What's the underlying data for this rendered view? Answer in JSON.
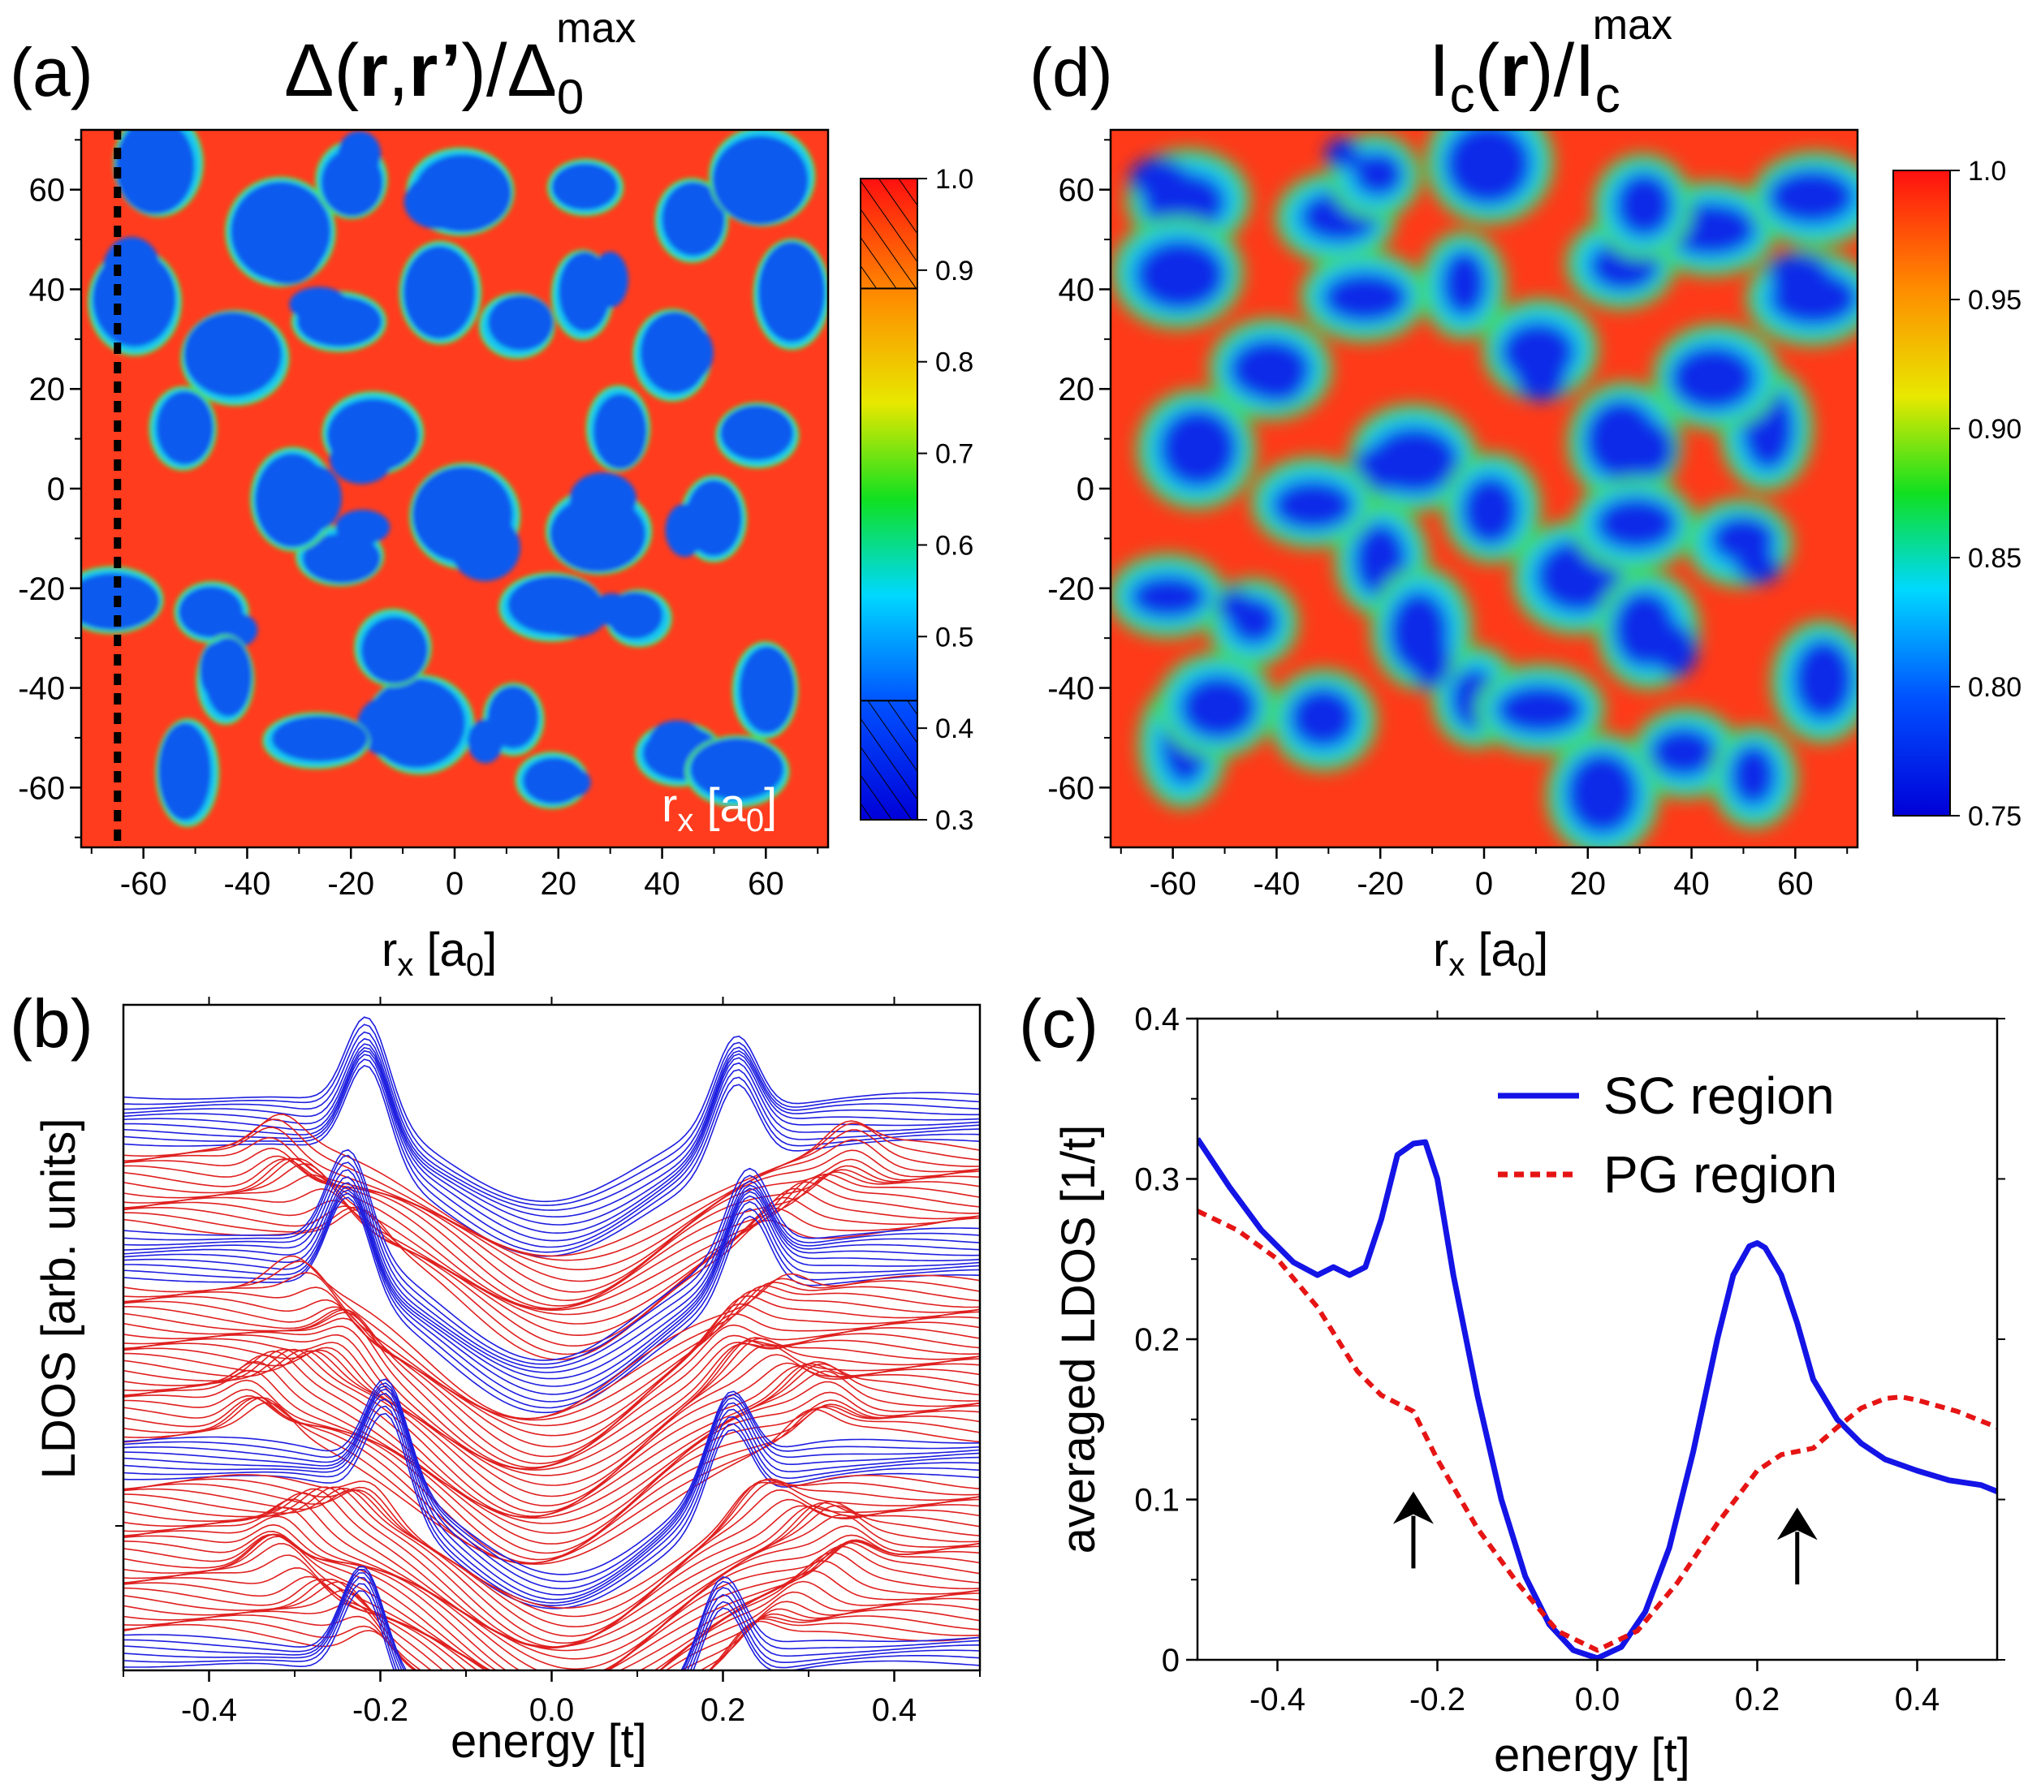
{
  "chart_data": [
    {
      "panel": "(a)",
      "type": "heatmap",
      "title": "Δ(r,r’)/Δ0max",
      "title_parts": {
        "main": "Δ(",
        "r1": "r",
        "comma": ",",
        "r2": "r’",
        "close": ")/Δ",
        "sub": "0",
        "sup": "max"
      },
      "xlabel": "rx [a0]",
      "xlabel_parts": {
        "r": "r",
        "sub": "x",
        "rest": " [a",
        "sub2": "0",
        "end": "]"
      },
      "ylabel": "",
      "inset_label_parts": {
        "r": "r",
        "sub": "x",
        "rest": " [a",
        "sub2": "0",
        "end": "]"
      },
      "xlim": [
        -72,
        72
      ],
      "ylim": [
        -72,
        72
      ],
      "xticks": [
        "-60",
        "-40",
        "-20",
        "0",
        "20",
        "40",
        "60"
      ],
      "yticks": [
        "60",
        "40",
        "20",
        "0",
        "-20",
        "-40",
        "-60"
      ],
      "xtick_values": [
        -60,
        -40,
        -20,
        0,
        20,
        40,
        60
      ],
      "ytick_values": [
        60,
        40,
        20,
        0,
        -20,
        -40,
        -60
      ],
      "dashed_line_x": -65,
      "colorbar": {
        "range": [
          0.3,
          1.0
        ],
        "ticks": [
          "1.0",
          "0.9",
          "0.8",
          "0.7",
          "0.6",
          "0.5",
          "0.4",
          "0.3"
        ],
        "tick_values": [
          1.0,
          0.9,
          0.8,
          0.7,
          0.6,
          0.5,
          0.4,
          0.3
        ],
        "hatched_ranges": [
          [
            0.88,
            1.0
          ],
          [
            0.3,
            0.43
          ]
        ]
      },
      "values_description_levels": {
        "high": 0.88,
        "low": 0.35
      }
    },
    {
      "panel": "(d)",
      "type": "heatmap",
      "title": "Ic(r)/Icmax",
      "title_parts": {
        "I1": "I",
        "c1": "c",
        "open": "(",
        "r": "r",
        "close": ")/I",
        "c2": "c",
        "sup": "max"
      },
      "xlabel": "rx [a0]",
      "xlabel_parts": {
        "r": "r",
        "sub": "x",
        "rest": " [a",
        "sub2": "0",
        "end": "]"
      },
      "xlim": [
        -72,
        72
      ],
      "ylim": [
        -72,
        72
      ],
      "xticks": [
        "-60",
        "-40",
        "-20",
        "0",
        "20",
        "40",
        "60"
      ],
      "yticks": [
        "60",
        "40",
        "20",
        "0",
        "-20",
        "-40",
        "-60"
      ],
      "xtick_values": [
        -60,
        -40,
        -20,
        0,
        20,
        40,
        60
      ],
      "ytick_values": [
        60,
        40,
        20,
        0,
        -20,
        -40,
        -60
      ],
      "colorbar": {
        "range": [
          0.75,
          1.0
        ],
        "ticks": [
          "1.0",
          "0.95",
          "0.90",
          "0.85",
          "0.80",
          "0.75"
        ],
        "tick_values": [
          1.0,
          0.95,
          0.9,
          0.85,
          0.8,
          0.75
        ]
      }
    },
    {
      "panel": "(b)",
      "type": "line",
      "title": "",
      "xlabel": "energy [t]",
      "ylabel": "LDOS [arb. units]",
      "xlim": [
        -0.5,
        0.5
      ],
      "xticks": [
        "-0.4",
        "-0.2",
        "0.0",
        "0.2",
        "0.4"
      ],
      "xtick_values": [
        -0.4,
        -0.2,
        0.0,
        0.2,
        0.4
      ],
      "series_colors": {
        "SC": "#1f1fe0",
        "PG": "#e02020"
      },
      "series_groups": [
        {
          "name": "SC top",
          "color_key": "SC",
          "count": 10
        },
        {
          "name": "PG 1",
          "color_key": "PG",
          "count": 16
        },
        {
          "name": "SC 2",
          "color_key": "SC",
          "count": 10
        },
        {
          "name": "PG 2",
          "color_key": "PG",
          "count": 30
        },
        {
          "name": "SC 3",
          "color_key": "SC",
          "count": 8
        },
        {
          "name": "PG 3",
          "color_key": "PG",
          "count": 30
        },
        {
          "name": "SC bottom",
          "color_key": "SC",
          "count": 6
        }
      ]
    },
    {
      "panel": "(c)",
      "type": "line",
      "title": "",
      "xlabel": "energy [t]",
      "ylabel": "averaged LDOS [1/t]",
      "xlim": [
        -0.5,
        0.5
      ],
      "ylim": [
        0,
        0.4
      ],
      "xticks": [
        "-0.4",
        "-0.2",
        "0.0",
        "0.2",
        "0.4"
      ],
      "xtick_values": [
        -0.4,
        -0.2,
        0.0,
        0.2,
        0.4
      ],
      "yticks": [
        "0.4",
        "0.3",
        "0.2",
        "0.1",
        "0"
      ],
      "ytick_values": [
        0.4,
        0.3,
        0.2,
        0.1,
        0
      ],
      "legend_position": "top-right",
      "series": [
        {
          "name": "SC region",
          "color": "#1414e6",
          "style": "solid",
          "x": [
            -0.5,
            -0.46,
            -0.42,
            -0.38,
            -0.35,
            -0.33,
            -0.31,
            -0.29,
            -0.27,
            -0.25,
            -0.23,
            -0.215,
            -0.2,
            -0.18,
            -0.15,
            -0.12,
            -0.09,
            -0.06,
            -0.03,
            0,
            0.03,
            0.06,
            0.09,
            0.12,
            0.15,
            0.17,
            0.19,
            0.2,
            0.21,
            0.23,
            0.25,
            0.27,
            0.3,
            0.33,
            0.36,
            0.4,
            0.44,
            0.48,
            0.5
          ],
          "values": [
            0.325,
            0.295,
            0.268,
            0.248,
            0.24,
            0.245,
            0.24,
            0.245,
            0.275,
            0.315,
            0.322,
            0.323,
            0.3,
            0.24,
            0.165,
            0.1,
            0.052,
            0.022,
            0.006,
            0.001,
            0.008,
            0.03,
            0.07,
            0.13,
            0.2,
            0.24,
            0.258,
            0.26,
            0.257,
            0.24,
            0.21,
            0.175,
            0.15,
            0.135,
            0.125,
            0.118,
            0.112,
            0.109,
            0.105
          ]
        },
        {
          "name": "PG region",
          "color": "#e61414",
          "style": "dashed",
          "x": [
            -0.5,
            -0.45,
            -0.4,
            -0.35,
            -0.3,
            -0.27,
            -0.25,
            -0.23,
            -0.2,
            -0.15,
            -0.1,
            -0.05,
            0,
            0.05,
            0.1,
            0.15,
            0.2,
            0.23,
            0.25,
            0.27,
            0.3,
            0.33,
            0.36,
            0.38,
            0.4,
            0.45,
            0.5
          ],
          "values": [
            0.28,
            0.268,
            0.25,
            0.22,
            0.18,
            0.165,
            0.16,
            0.155,
            0.125,
            0.082,
            0.048,
            0.018,
            0.006,
            0.018,
            0.048,
            0.085,
            0.118,
            0.128,
            0.13,
            0.132,
            0.145,
            0.157,
            0.163,
            0.164,
            0.162,
            0.155,
            0.145
          ]
        }
      ],
      "arrows": [
        {
          "x": -0.23,
          "y_from": 0.057,
          "y_to": 0.105
        },
        {
          "x": 0.25,
          "y_from": 0.047,
          "y_to": 0.095
        }
      ]
    }
  ]
}
